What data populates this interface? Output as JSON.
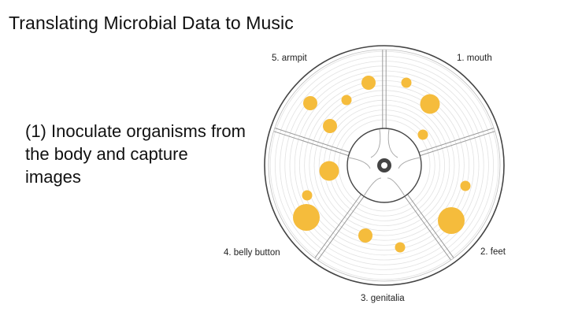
{
  "title": "Translating Microbial Data to Music",
  "step": {
    "text": "(1) Inoculate organisms from the body and capture images"
  },
  "diagram": {
    "colors": {
      "colony": "#f5bc3c",
      "rim": "#444444",
      "divider": "#9a9a9a",
      "ring": "#e2e2e2"
    },
    "regions": [
      {
        "id": "mouth",
        "label": "1. mouth"
      },
      {
        "id": "feet",
        "label": "2. feet"
      },
      {
        "id": "genitalia",
        "label": "3. genitalia"
      },
      {
        "id": "belly-button",
        "label": "4. belly button"
      },
      {
        "id": "armpit",
        "label": "5. armpit"
      }
    ]
  }
}
